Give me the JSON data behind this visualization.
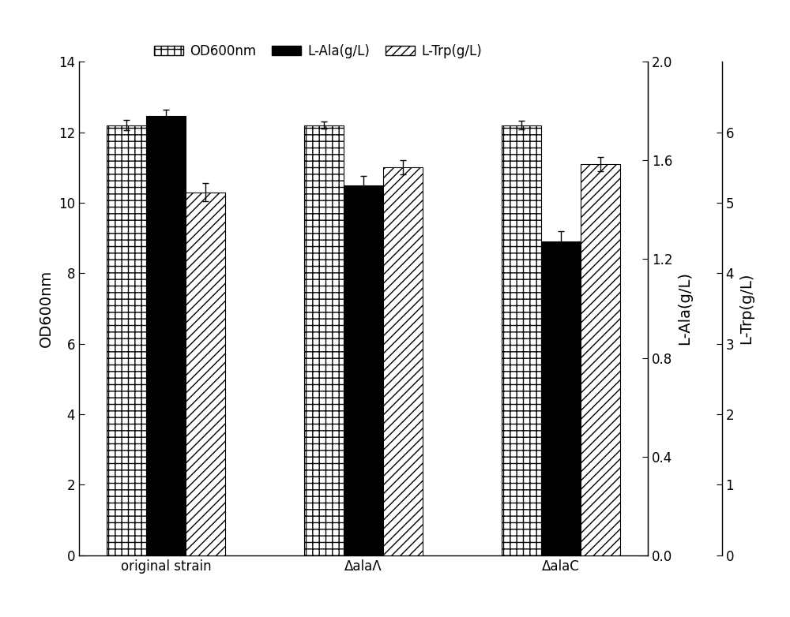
{
  "categories": [
    "original strain",
    "ΔalaΛ",
    "ΔalaC"
  ],
  "OD600_values": [
    12.2,
    12.2,
    12.2
  ],
  "OD600_errors": [
    0.15,
    0.1,
    0.12
  ],
  "LAla_values": [
    12.45,
    10.5,
    8.9
  ],
  "LAla_errors": [
    0.2,
    0.25,
    0.3
  ],
  "LTrp_values": [
    10.3,
    11.0,
    11.1
  ],
  "LTrp_errors": [
    0.25,
    0.2,
    0.2
  ],
  "left_ylim": [
    0,
    14
  ],
  "left_yticks": [
    0,
    2,
    4,
    6,
    8,
    10,
    12,
    14
  ],
  "mid_ylim": [
    0.0,
    2.0
  ],
  "mid_yticks": [
    0.0,
    0.4,
    0.8,
    1.2,
    1.6,
    2.0
  ],
  "right_ylim": [
    0,
    7
  ],
  "right_yticks": [
    0,
    1,
    2,
    3,
    4,
    5,
    6
  ],
  "left_ylabel": "OD600nm",
  "mid_ylabel": "L-Ala(g/L)",
  "right_ylabel": "L-Trp(g/L)",
  "legend_labels": [
    "OD600nm",
    "L-Ala(g/L)",
    "L-Trp(g/L)"
  ],
  "figsize": [
    10.0,
    7.82
  ],
  "dpi": 100
}
